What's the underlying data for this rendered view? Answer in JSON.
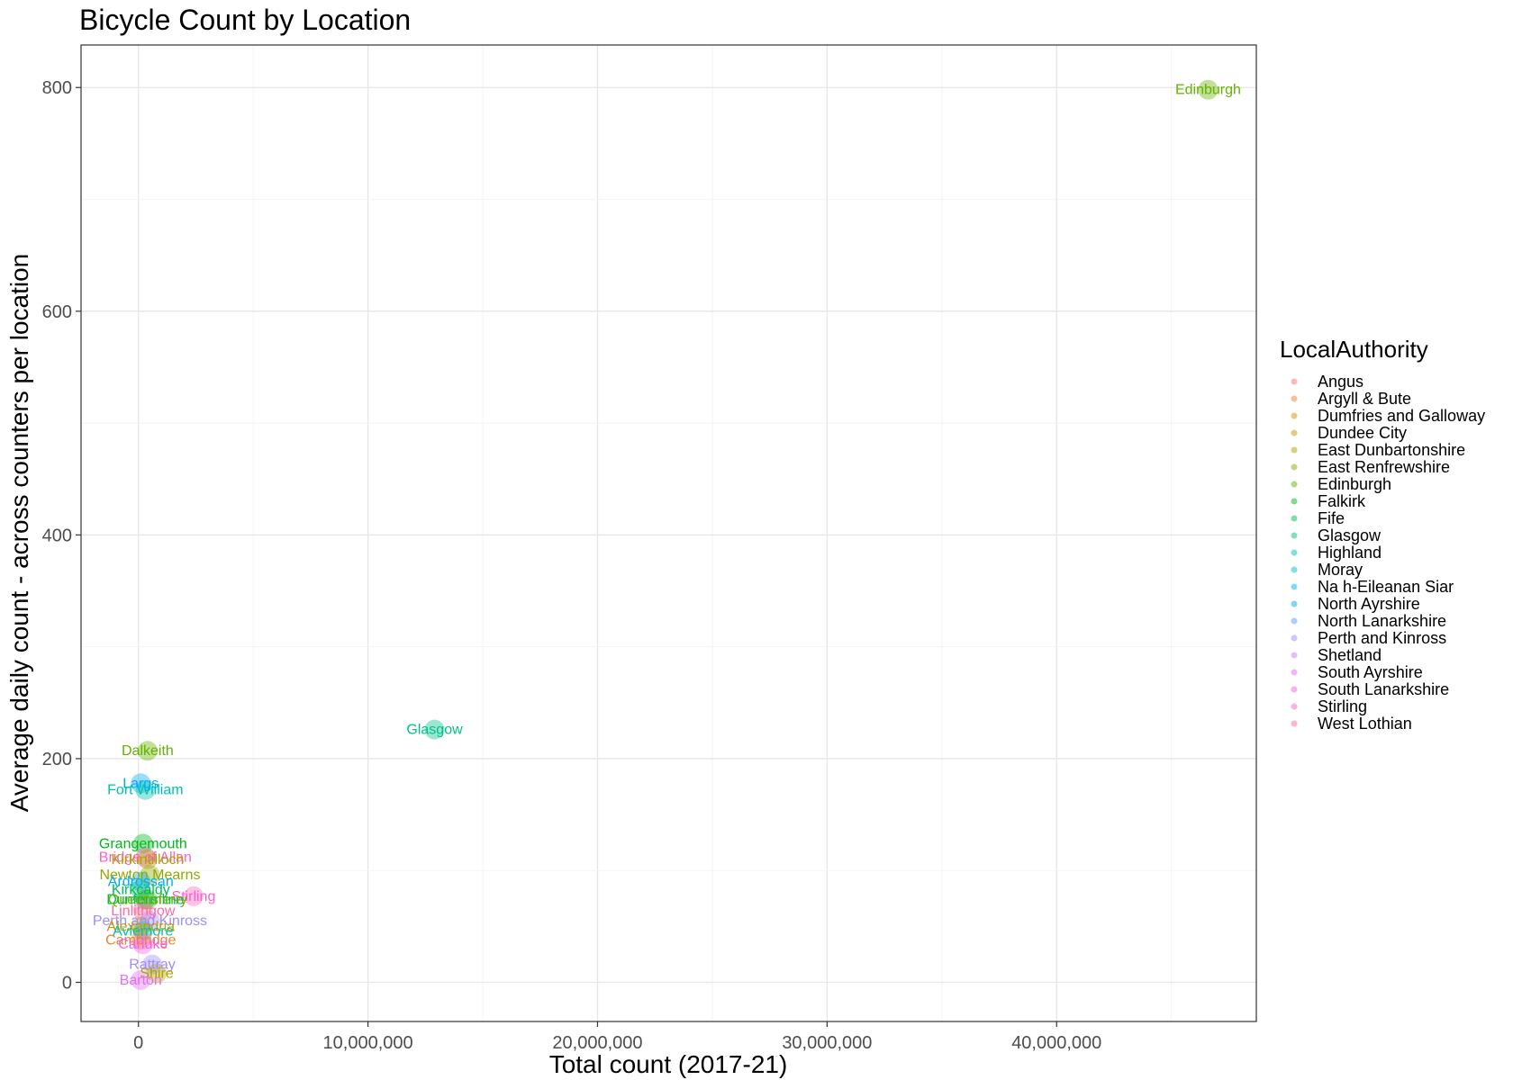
{
  "chart_data": {
    "type": "scatter",
    "title": "Bicycle Count by Location",
    "xlabel": "Total count (2017-21)",
    "ylabel": "Average daily count - across counters per location",
    "xlim": [
      -2500000,
      48700000
    ],
    "ylim": [
      -35,
      838
    ],
    "x_ticks": [
      0,
      10000000,
      20000000,
      30000000,
      40000000
    ],
    "x_tick_labels": [
      "0",
      "10,000,000",
      "20,000,000",
      "30,000,000",
      "40,000,000"
    ],
    "y_ticks": [
      0,
      200,
      400,
      600,
      800
    ],
    "y_tick_labels": [
      "0",
      "200",
      "400",
      "600",
      "800"
    ],
    "grid": true,
    "legend": {
      "title": "LocalAuthority",
      "placement": "right",
      "entries": [
        {
          "name": "Angus",
          "color": "#F8766D"
        },
        {
          "name": "Argyll & Bute",
          "color": "#EC8239"
        },
        {
          "name": "Dumfries and Galloway",
          "color": "#DB8E00"
        },
        {
          "name": "Dundee City",
          "color": "#C79800"
        },
        {
          "name": "East Dunbartonshire",
          "color": "#AEA200"
        },
        {
          "name": "East Renfrewshire",
          "color": "#8FAA00"
        },
        {
          "name": "Edinburgh",
          "color": "#64B200"
        },
        {
          "name": "Falkirk",
          "color": "#00B81B"
        },
        {
          "name": "Fife",
          "color": "#00BD5C"
        },
        {
          "name": "Glasgow",
          "color": "#00C08B"
        },
        {
          "name": "Highland",
          "color": "#00C1B2"
        },
        {
          "name": "Moray",
          "color": "#00BFD4"
        },
        {
          "name": "Na h-Eileanan Siar",
          "color": "#00B8F3"
        },
        {
          "name": "North Ayrshire",
          "color": "#00ACFC"
        },
        {
          "name": "North Lanarkshire",
          "color": "#619CFF"
        },
        {
          "name": "Perth and Kinross",
          "color": "#9F8CFF"
        },
        {
          "name": "Shetland",
          "color": "#C77CFF"
        },
        {
          "name": "South Ayrshire",
          "color": "#E46EF6"
        },
        {
          "name": "South Lanarkshire",
          "color": "#F564E3"
        },
        {
          "name": "Stirling",
          "color": "#FF61C7"
        },
        {
          "name": "West Lothian",
          "color": "#FF6BA0"
        }
      ]
    },
    "points": [
      {
        "label": "Edinburgh",
        "x": 46600000,
        "y": 798,
        "authority": "Edinburgh"
      },
      {
        "label": "Glasgow",
        "x": 12900000,
        "y": 226,
        "authority": "Glasgow"
      },
      {
        "label": "Dalkeith",
        "x": 400000,
        "y": 207,
        "authority": "Edinburgh"
      },
      {
        "label": "Largs",
        "x": 100000,
        "y": 178,
        "authority": "North Ayrshire"
      },
      {
        "label": "Fort William",
        "x": 300000,
        "y": 172,
        "authority": "Highland"
      },
      {
        "label": "Grangemouth",
        "x": 200000,
        "y": 124,
        "authority": "Falkirk"
      },
      {
        "label": "Bridge of Allan",
        "x": 300000,
        "y": 112,
        "authority": "Stirling"
      },
      {
        "label": "Kirkintilloch",
        "x": 400000,
        "y": 110,
        "authority": "East Dunbartonshire"
      },
      {
        "label": "Newton Mearns",
        "x": 500000,
        "y": 96,
        "authority": "East Renfrewshire"
      },
      {
        "label": "Ardrossan",
        "x": 100000,
        "y": 90,
        "authority": "North Ayrshire"
      },
      {
        "label": "Kirkcaldy",
        "x": 100000,
        "y": 83,
        "authority": "Fife"
      },
      {
        "label": "Stirling",
        "x": 2400000,
        "y": 77,
        "authority": "Stirling"
      },
      {
        "label": "Dunfermline",
        "x": 300000,
        "y": 74,
        "authority": "Fife"
      },
      {
        "label": "Queensferry",
        "x": 400000,
        "y": 74,
        "authority": "Edinburgh"
      },
      {
        "label": "Linlithgow",
        "x": 200000,
        "y": 64,
        "authority": "West Lothian"
      },
      {
        "label": "Perth and Kinross",
        "x": 500000,
        "y": 55,
        "authority": "Perth and Kinross"
      },
      {
        "label": "Alexandria",
        "x": 100000,
        "y": 50,
        "authority": "Dundee City"
      },
      {
        "label": "Aviemore",
        "x": 200000,
        "y": 46,
        "authority": "Highland"
      },
      {
        "label": "Cambridge",
        "x": 100000,
        "y": 38,
        "authority": "Argyll & Bute"
      },
      {
        "label": "Carluke",
        "x": 200000,
        "y": 34,
        "authority": "South Lanarkshire"
      },
      {
        "label": "Rattray",
        "x": 600000,
        "y": 16,
        "authority": "Perth and Kinross"
      },
      {
        "label": "Shire",
        "x": 800000,
        "y": 8,
        "authority": "East Dunbartonshire"
      },
      {
        "label": "Barton",
        "x": 100000,
        "y": 2,
        "authority": "South Ayrshire"
      }
    ]
  }
}
